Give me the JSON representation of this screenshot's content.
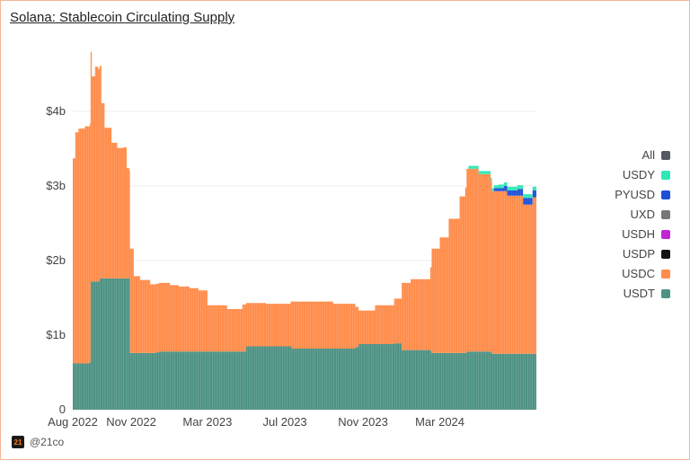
{
  "title": "Solana: Stablecoin Circulating Supply",
  "footer": {
    "logo_text": "21",
    "handle": "@21co"
  },
  "chart_data": {
    "type": "area",
    "stacked": true,
    "x_range": [
      "2022-08-01",
      "2024-07-31"
    ],
    "x_ticks": [
      "Aug 2022",
      "Nov 2022",
      "Mar 2023",
      "Jul 2023",
      "Nov 2023",
      "Mar 2024"
    ],
    "y_ticks": [
      "0",
      "$1b",
      "$2b",
      "$3b",
      "$4b"
    ],
    "y_tick_values": [
      0,
      1,
      2,
      3,
      4
    ],
    "ylim": [
      0,
      5
    ],
    "y_unit": "billion USD",
    "grid": true,
    "legend_position": "right",
    "legend": [
      {
        "name": "All",
        "color": "#555a60"
      },
      {
        "name": "USDY",
        "color": "#2ee8b6"
      },
      {
        "name": "PYUSD",
        "color": "#1f4fd8"
      },
      {
        "name": "UXD",
        "color": "#777777"
      },
      {
        "name": "USDH",
        "color": "#c026d3"
      },
      {
        "name": "USDP",
        "color": "#111111"
      },
      {
        "name": "USDC",
        "color": "#ff8c4a"
      },
      {
        "name": "USDT",
        "color": "#4e9284"
      }
    ],
    "series": [
      {
        "name": "USDT",
        "color": "#4e9284",
        "points": [
          [
            "2022-08-01",
            0.62
          ],
          [
            "2022-08-28",
            0.64
          ],
          [
            "2022-08-29",
            1.72
          ],
          [
            "2022-09-10",
            1.72
          ],
          [
            "2022-09-12",
            1.76
          ],
          [
            "2022-10-29",
            1.76
          ],
          [
            "2022-10-30",
            0.76
          ],
          [
            "2022-12-10",
            0.77
          ],
          [
            "2022-12-15",
            0.78
          ],
          [
            "2023-04-25",
            0.78
          ],
          [
            "2023-05-01",
            0.85
          ],
          [
            "2023-07-10",
            0.85
          ],
          [
            "2023-07-12",
            0.82
          ],
          [
            "2023-10-20",
            0.84
          ],
          [
            "2023-10-25",
            0.88
          ],
          [
            "2023-12-20",
            0.89
          ],
          [
            "2024-01-01",
            0.8
          ],
          [
            "2024-02-15",
            0.79
          ],
          [
            "2024-02-17",
            0.76
          ],
          [
            "2024-04-10",
            0.76
          ],
          [
            "2024-04-12",
            0.78
          ],
          [
            "2024-05-20",
            0.77
          ],
          [
            "2024-05-22",
            0.75
          ],
          [
            "2024-07-31",
            0.75
          ]
        ]
      },
      {
        "name": "USDC",
        "color": "#ff8c4a",
        "points": [
          [
            "2022-08-01",
            2.75
          ],
          [
            "2022-08-05",
            3.1
          ],
          [
            "2022-08-10",
            3.15
          ],
          [
            "2022-08-20",
            3.18
          ],
          [
            "2022-08-28",
            3.2
          ],
          [
            "2022-08-29",
            3.08
          ],
          [
            "2022-08-31",
            2.75
          ],
          [
            "2022-09-05",
            2.88
          ],
          [
            "2022-09-10",
            2.85
          ],
          [
            "2022-09-15",
            2.35
          ],
          [
            "2022-09-20",
            2.02
          ],
          [
            "2022-10-01",
            1.82
          ],
          [
            "2022-10-10",
            1.75
          ],
          [
            "2022-10-20",
            1.76
          ],
          [
            "2022-10-25",
            1.48
          ],
          [
            "2022-10-29",
            1.45
          ],
          [
            "2022-10-30",
            1.4
          ],
          [
            "2022-11-05",
            1.03
          ],
          [
            "2022-11-15",
            0.98
          ],
          [
            "2022-12-01",
            0.92
          ],
          [
            "2023-01-01",
            0.89
          ],
          [
            "2023-01-15",
            0.87
          ],
          [
            "2023-02-01",
            0.85
          ],
          [
            "2023-02-15",
            0.82
          ],
          [
            "2023-03-01",
            0.62
          ],
          [
            "2023-04-01",
            0.57
          ],
          [
            "2023-04-25",
            0.63
          ],
          [
            "2023-05-01",
            0.58
          ],
          [
            "2023-06-01",
            0.57
          ],
          [
            "2023-07-10",
            0.6
          ],
          [
            "2023-07-12",
            0.63
          ],
          [
            "2023-08-15",
            0.63
          ],
          [
            "2023-09-15",
            0.6
          ],
          [
            "2023-10-20",
            0.54
          ],
          [
            "2023-10-25",
            0.45
          ],
          [
            "2023-11-20",
            0.52
          ],
          [
            "2023-12-20",
            0.6
          ],
          [
            "2024-01-01",
            0.9
          ],
          [
            "2024-01-15",
            0.95
          ],
          [
            "2024-02-15",
            1.12
          ],
          [
            "2024-02-17",
            1.4
          ],
          [
            "2024-03-01",
            1.55
          ],
          [
            "2024-03-15",
            1.8
          ],
          [
            "2024-04-01",
            2.1
          ],
          [
            "2024-04-10",
            2.22
          ],
          [
            "2024-04-12",
            2.45
          ],
          [
            "2024-05-01",
            2.38
          ],
          [
            "2024-05-20",
            2.3
          ],
          [
            "2024-05-22",
            2.18
          ],
          [
            "2024-06-15",
            2.12
          ],
          [
            "2024-07-10",
            2.0
          ],
          [
            "2024-07-25",
            2.1
          ],
          [
            "2024-07-31",
            2.12
          ]
        ]
      },
      {
        "name": "PYUSD",
        "color": "#1f4fd8",
        "points": [
          [
            "2022-08-01",
            0
          ],
          [
            "2024-05-18",
            0
          ],
          [
            "2024-05-25",
            0.04
          ],
          [
            "2024-06-10",
            0.07
          ],
          [
            "2024-07-01",
            0.09
          ],
          [
            "2024-07-31",
            0.1
          ]
        ]
      },
      {
        "name": "USDY",
        "color": "#2ee8b6",
        "points": [
          [
            "2022-08-01",
            0
          ],
          [
            "2024-04-01",
            0
          ],
          [
            "2024-04-15",
            0.04
          ],
          [
            "2024-06-01",
            0.05
          ],
          [
            "2024-07-31",
            0.05
          ]
        ]
      }
    ]
  }
}
